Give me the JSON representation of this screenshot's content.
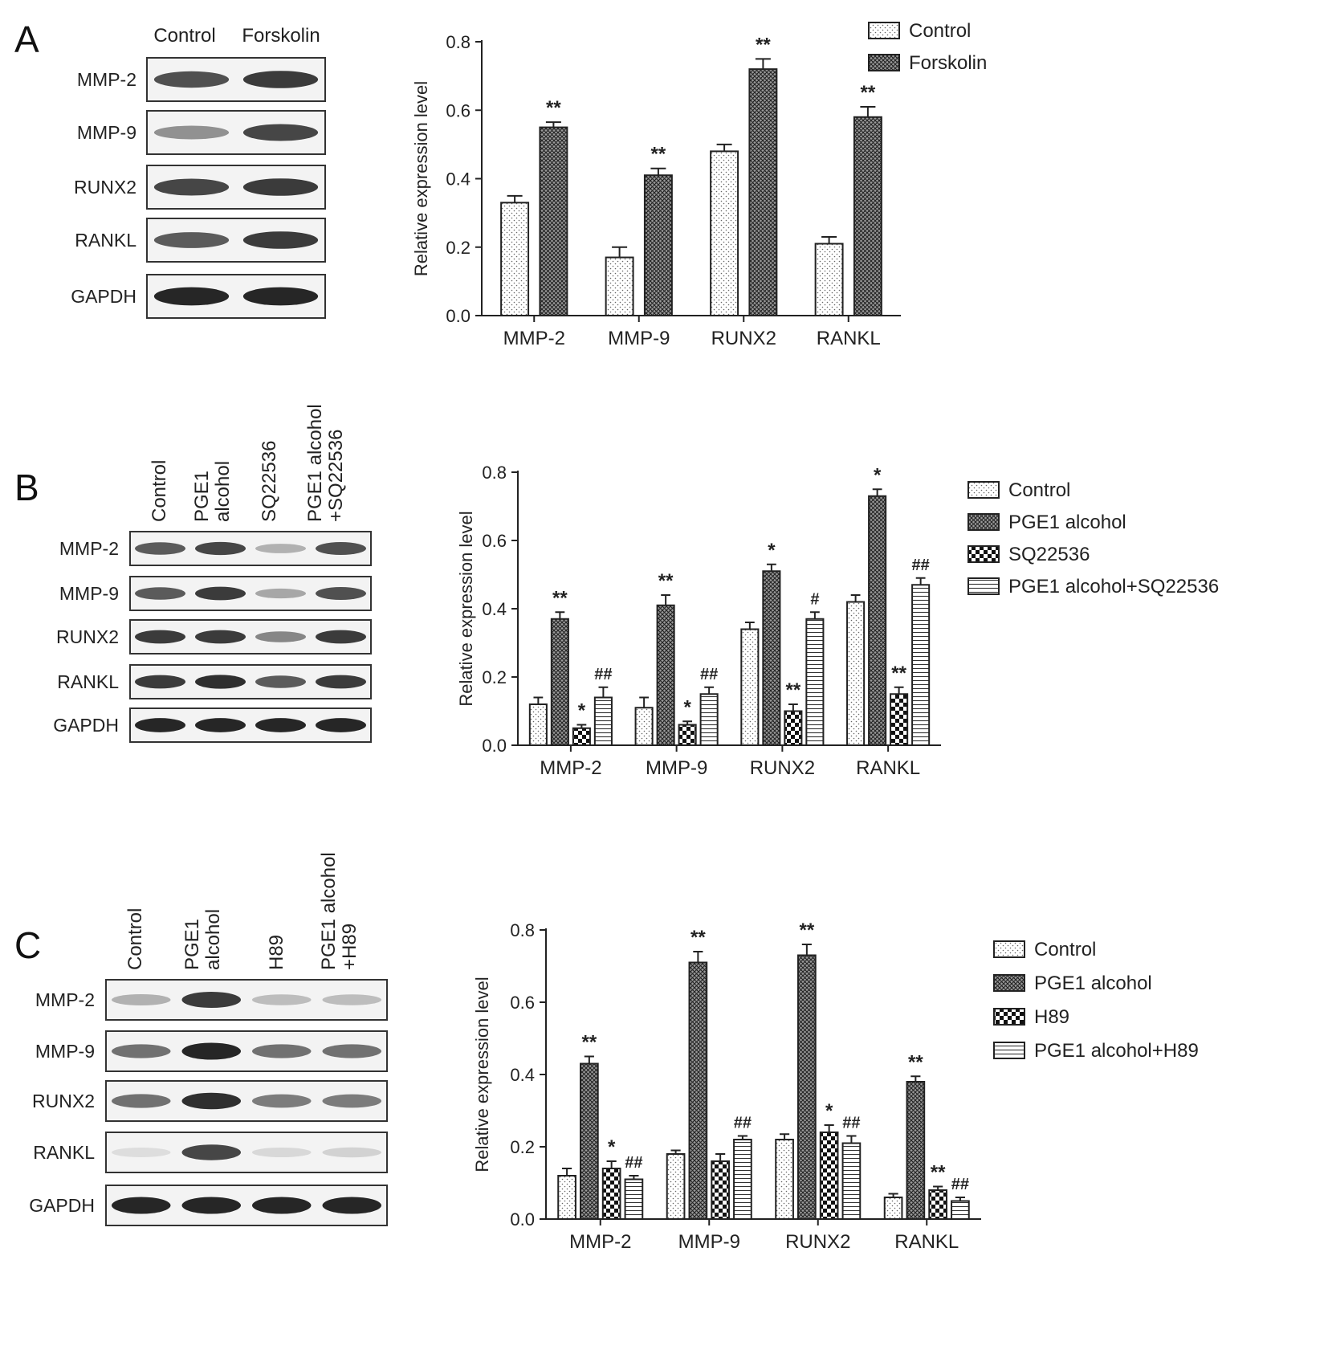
{
  "colors": {
    "ink": "#222222",
    "band": "#1a1a1a",
    "frame": "#333333"
  },
  "panels": [
    {
      "letter": "A",
      "blot": {
        "lanes": [
          "Control",
          "Forskolin"
        ],
        "rows": [
          "MMP-2",
          "MMP-9",
          "RUNX2",
          "RANKL",
          "GAPDH"
        ],
        "band_intensity": [
          [
            0.75,
            0.85
          ],
          [
            0.45,
            0.8
          ],
          [
            0.8,
            0.85
          ],
          [
            0.7,
            0.85
          ],
          [
            0.95,
            0.95
          ]
        ]
      }
    },
    {
      "letter": "B",
      "blot": {
        "lanes": [
          "Control",
          "PGE1 alcohol",
          "SQ22536",
          "PGE1 alcohol +SQ22536"
        ],
        "rows": [
          "MMP-2",
          "MMP-9",
          "RUNX2",
          "RANKL",
          "GAPDH"
        ],
        "band_intensity": [
          [
            0.7,
            0.8,
            0.3,
            0.75
          ],
          [
            0.7,
            0.85,
            0.35,
            0.75
          ],
          [
            0.85,
            0.85,
            0.5,
            0.85
          ],
          [
            0.85,
            0.9,
            0.7,
            0.85
          ],
          [
            0.95,
            0.95,
            0.95,
            0.95
          ]
        ]
      }
    },
    {
      "letter": "C",
      "blot": {
        "lanes": [
          "Control",
          "PGE1 alcohol",
          "H89",
          "PGE1 alcohol +H89"
        ],
        "rows": [
          "MMP-2",
          "MMP-9",
          "RUNX2",
          "RANKL",
          "GAPDH"
        ],
        "band_intensity": [
          [
            0.3,
            0.85,
            0.25,
            0.25
          ],
          [
            0.6,
            0.95,
            0.6,
            0.6
          ],
          [
            0.6,
            0.9,
            0.55,
            0.55
          ],
          [
            0.1,
            0.8,
            0.12,
            0.15
          ],
          [
            0.95,
            0.95,
            0.95,
            0.95
          ]
        ]
      }
    }
  ],
  "chart_data": [
    {
      "type": "bar",
      "panel": "A",
      "ylabel": "Relative expression level",
      "ylim": [
        0,
        0.8
      ],
      "yticks": [
        "0.0",
        "0.2",
        "0.4",
        "0.6",
        "0.8"
      ],
      "categories": [
        "MMP-2",
        "MMP-9",
        "RUNX2",
        "RANKL"
      ],
      "legend_position": "top-right",
      "series": [
        {
          "name": "Control",
          "pattern": "dots",
          "values": [
            0.33,
            0.17,
            0.48,
            0.21
          ],
          "errors": [
            0.02,
            0.03,
            0.02,
            0.02
          ],
          "marks": [
            "",
            "",
            "",
            ""
          ]
        },
        {
          "name": "Forskolin",
          "pattern": "crosshatch",
          "values": [
            0.55,
            0.41,
            0.72,
            0.58
          ],
          "errors": [
            0.015,
            0.02,
            0.03,
            0.03
          ],
          "marks": [
            "**",
            "**",
            "**",
            "**"
          ]
        }
      ]
    },
    {
      "type": "bar",
      "panel": "B",
      "ylabel": "Relative expression level",
      "ylim": [
        0,
        0.8
      ],
      "yticks": [
        "0.0",
        "0.2",
        "0.4",
        "0.6",
        "0.8"
      ],
      "categories": [
        "MMP-2",
        "MMP-9",
        "RUNX2",
        "RANKL"
      ],
      "legend_position": "right",
      "series": [
        {
          "name": "Control",
          "pattern": "dots",
          "values": [
            0.12,
            0.11,
            0.34,
            0.42
          ],
          "errors": [
            0.02,
            0.03,
            0.02,
            0.02
          ],
          "marks": [
            "",
            "",
            "",
            ""
          ]
        },
        {
          "name": "PGE1 alcohol",
          "pattern": "crosshatch",
          "values": [
            0.37,
            0.41,
            0.51,
            0.73
          ],
          "errors": [
            0.02,
            0.03,
            0.02,
            0.02
          ],
          "marks": [
            "**",
            "**",
            "*",
            "*"
          ]
        },
        {
          "name": "SQ22536",
          "pattern": "checker",
          "values": [
            0.05,
            0.06,
            0.1,
            0.15
          ],
          "errors": [
            0.01,
            0.01,
            0.02,
            0.02
          ],
          "marks": [
            "*",
            "*",
            "**",
            "**"
          ]
        },
        {
          "name": "PGE1 alcohol+SQ22536",
          "pattern": "hlines",
          "values": [
            0.14,
            0.15,
            0.37,
            0.47
          ],
          "errors": [
            0.03,
            0.02,
            0.02,
            0.02
          ],
          "marks": [
            "##",
            "##",
            "#",
            "##"
          ]
        }
      ]
    },
    {
      "type": "bar",
      "panel": "C",
      "ylabel": "Relative expression level",
      "ylim": [
        0,
        0.8
      ],
      "yticks": [
        "0.0",
        "0.2",
        "0.4",
        "0.6",
        "0.8"
      ],
      "categories": [
        "MMP-2",
        "MMP-9",
        "RUNX2",
        "RANKL"
      ],
      "legend_position": "right",
      "series": [
        {
          "name": "Control",
          "pattern": "dots",
          "values": [
            0.12,
            0.18,
            0.22,
            0.06
          ],
          "errors": [
            0.02,
            0.01,
            0.015,
            0.01
          ],
          "marks": [
            "",
            "",
            "",
            ""
          ]
        },
        {
          "name": "PGE1 alcohol",
          "pattern": "crosshatch",
          "values": [
            0.43,
            0.71,
            0.73,
            0.38
          ],
          "errors": [
            0.02,
            0.03,
            0.03,
            0.015
          ],
          "marks": [
            "**",
            "**",
            "**",
            "**"
          ]
        },
        {
          "name": "H89",
          "pattern": "checker",
          "values": [
            0.14,
            0.16,
            0.24,
            0.08
          ],
          "errors": [
            0.02,
            0.02,
            0.02,
            0.01
          ],
          "marks": [
            "*",
            "",
            "*",
            "**"
          ]
        },
        {
          "name": "PGE1 alcohol+H89",
          "pattern": "hlines",
          "values": [
            0.11,
            0.22,
            0.21,
            0.05
          ],
          "errors": [
            0.01,
            0.01,
            0.02,
            0.01
          ],
          "marks": [
            "##",
            "##",
            "##",
            "##"
          ]
        }
      ]
    }
  ]
}
